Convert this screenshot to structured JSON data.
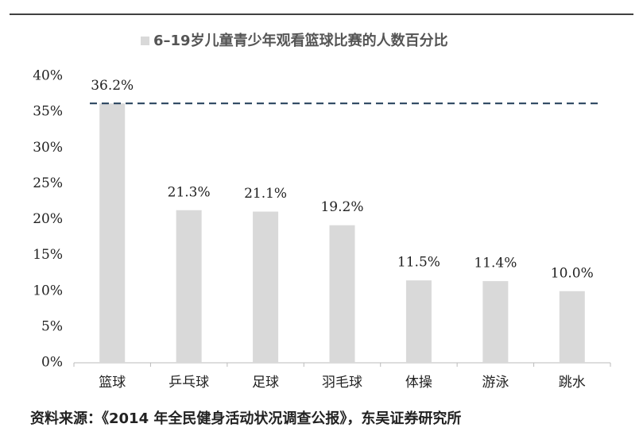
{
  "chart_data": {
    "type": "bar",
    "title": "6–19岁儿童青少年观看篮球比赛的人数百分比",
    "categories": [
      "篮球",
      "乒乓球",
      "足球",
      "羽毛球",
      "体操",
      "游泳",
      "跳水"
    ],
    "series": [
      {
        "name": "6–19岁儿童青少年观看篮球比赛的人数百分比",
        "color": "#d9d9d9",
        "values": [
          36.2,
          21.3,
          21.1,
          19.2,
          11.5,
          11.4,
          10.0
        ],
        "value_labels": [
          "36.2%",
          "21.3%",
          "21.1%",
          "19.2%",
          "11.5%",
          "11.4%",
          "10.0%"
        ]
      }
    ],
    "reference_line": {
      "value": 36.2,
      "color": "#1f3b57",
      "style": "dashed"
    },
    "ylim": [
      0,
      40
    ],
    "yticks": [
      {
        "value": 0,
        "label": "0%"
      },
      {
        "value": 5,
        "label": "5%"
      },
      {
        "value": 10,
        "label": "10%"
      },
      {
        "value": 15,
        "label": "15%"
      },
      {
        "value": 20,
        "label": "20%"
      },
      {
        "value": 25,
        "label": "25%"
      },
      {
        "value": 30,
        "label": "30%"
      },
      {
        "value": 35,
        "label": "35%"
      },
      {
        "value": 40,
        "label": "40%"
      }
    ],
    "grid": false,
    "legend": "top",
    "source": "资料来源：《2014 年全民健身活动状况调查公报》，东吴证券研究所"
  }
}
